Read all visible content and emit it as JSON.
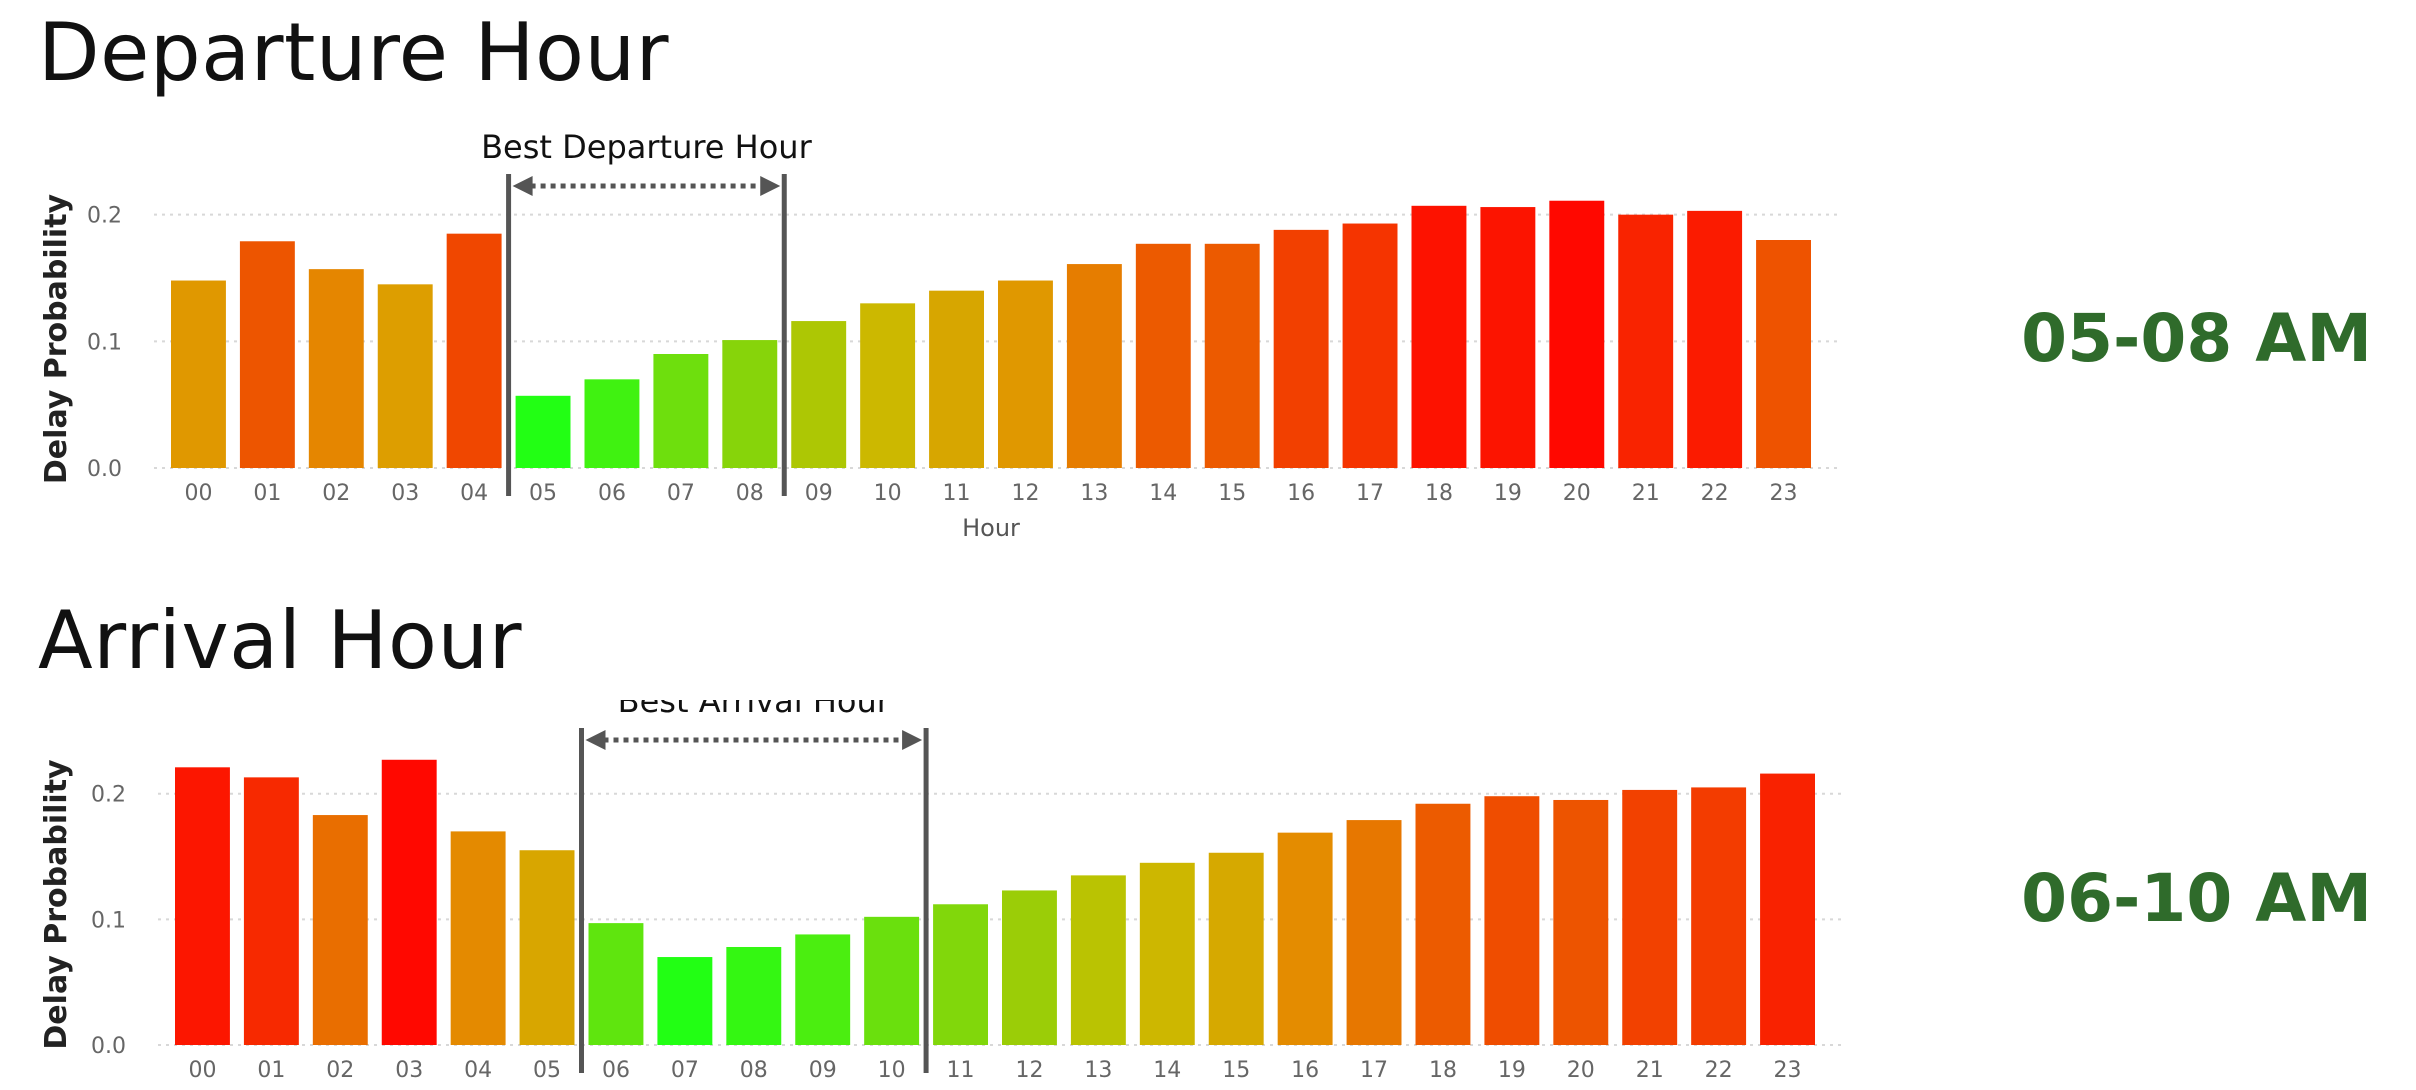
{
  "departure": {
    "title": "Departure Hour",
    "answer": "05-08 AM",
    "chart_data": {
      "type": "bar",
      "ylabel": "Delay Probability",
      "xlabel": "Hour",
      "ylim": [
        0,
        0.21
      ],
      "yticks": [
        "0.0",
        "0.1",
        "0.2"
      ],
      "grid": true,
      "categories": [
        "00",
        "01",
        "02",
        "03",
        "04",
        "05",
        "06",
        "07",
        "08",
        "09",
        "10",
        "11",
        "12",
        "13",
        "14",
        "15",
        "16",
        "17",
        "18",
        "19",
        "20",
        "21",
        "22",
        "23"
      ],
      "values": [
        0.148,
        0.179,
        0.157,
        0.145,
        0.185,
        0.057,
        0.07,
        0.09,
        0.101,
        0.116,
        0.13,
        0.14,
        0.148,
        0.161,
        0.177,
        0.177,
        0.188,
        0.193,
        0.207,
        0.206,
        0.211,
        0.2,
        0.203,
        0.18
      ],
      "annotation": {
        "label": "Best Departure Hour",
        "from": "05",
        "to": "08"
      }
    }
  },
  "arrival": {
    "title": "Arrival Hour",
    "answer": "06-10 AM",
    "chart_data": {
      "type": "bar",
      "ylabel": "Delay Probability",
      "xlabel": "Hour",
      "ylim": [
        0,
        0.23
      ],
      "yticks": [
        "0.0",
        "0.1",
        "0.2"
      ],
      "grid": true,
      "categories": [
        "00",
        "01",
        "02",
        "03",
        "04",
        "05",
        "06",
        "07",
        "08",
        "09",
        "10",
        "11",
        "12",
        "13",
        "14",
        "15",
        "16",
        "17",
        "18",
        "19",
        "20",
        "21",
        "22",
        "23"
      ],
      "values": [
        0.221,
        0.213,
        0.183,
        0.227,
        0.17,
        0.155,
        0.097,
        0.07,
        0.078,
        0.088,
        0.102,
        0.112,
        0.123,
        0.135,
        0.145,
        0.153,
        0.169,
        0.179,
        0.192,
        0.198,
        0.195,
        0.203,
        0.205,
        0.216
      ],
      "annotation": {
        "label": "Best Arrival Hour",
        "from": "06",
        "to": "10"
      }
    }
  }
}
